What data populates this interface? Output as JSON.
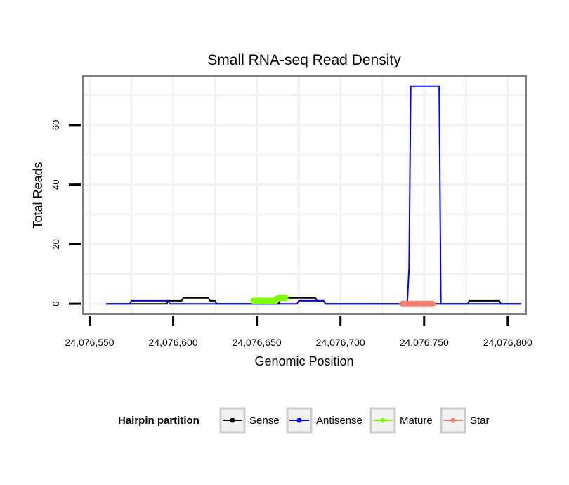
{
  "chart_data": {
    "type": "line",
    "title": "Small RNA-seq Read Density",
    "xlabel": "Genomic Position",
    "ylabel": "Total Reads",
    "xlim": [
      24076546,
      24076811
    ],
    "ylim": [
      -3.5,
      76.5
    ],
    "x_ticks": [
      24076550,
      24076600,
      24076650,
      24076700,
      24076750,
      24076800
    ],
    "x_tick_labels": [
      "24,076,550",
      "24,076,600",
      "24,076,650",
      "24,076,700",
      "24,076,750",
      "24,076,800"
    ],
    "y_ticks": [
      0,
      20,
      40,
      60
    ],
    "y_tick_labels": [
      "0",
      "20",
      "40",
      "60"
    ],
    "grid": true,
    "legend_title": "Hairpin partition",
    "legend_position": "bottom",
    "series": [
      {
        "name": "Sense",
        "color": "#000000",
        "kind": "line",
        "points": [
          [
            24076560,
            0
          ],
          [
            24076596,
            0
          ],
          [
            24076597,
            1
          ],
          [
            24076605,
            1
          ],
          [
            24076606,
            2
          ],
          [
            24076621,
            2
          ],
          [
            24076622,
            1
          ],
          [
            24076625,
            1
          ],
          [
            24076626,
            0
          ],
          [
            24076663,
            0
          ],
          [
            24076664,
            2
          ],
          [
            24076685,
            2
          ],
          [
            24076686,
            1
          ],
          [
            24076690,
            1
          ],
          [
            24076691,
            0
          ],
          [
            24076776,
            0
          ],
          [
            24076777,
            1
          ],
          [
            24076795,
            1
          ],
          [
            24076796,
            0
          ],
          [
            24076808,
            0
          ]
        ]
      },
      {
        "name": "Antisense",
        "color": "#0000ff",
        "kind": "line",
        "points": [
          [
            24076560,
            0
          ],
          [
            24076574,
            0
          ],
          [
            24076575,
            1
          ],
          [
            24076597,
            1
          ],
          [
            24076598,
            0
          ],
          [
            24076674,
            0
          ],
          [
            24076675,
            1
          ],
          [
            24076690,
            1
          ],
          [
            24076691,
            0
          ],
          [
            24076739,
            0
          ],
          [
            24076740,
            1
          ],
          [
            24076741,
            12
          ],
          [
            24076742,
            73
          ],
          [
            24076759,
            73
          ],
          [
            24076760,
            0
          ],
          [
            24076808,
            0
          ]
        ]
      },
      {
        "name": "Mature",
        "color": "#7fff00",
        "kind": "segment",
        "points": [
          [
            24076648,
            1
          ],
          [
            24076661,
            1
          ],
          [
            24076663,
            2
          ],
          [
            24076667,
            2
          ]
        ]
      },
      {
        "name": "Star",
        "color": "#f08070",
        "kind": "segment",
        "points": [
          [
            24076737,
            0
          ],
          [
            24076755,
            0
          ]
        ]
      }
    ]
  }
}
